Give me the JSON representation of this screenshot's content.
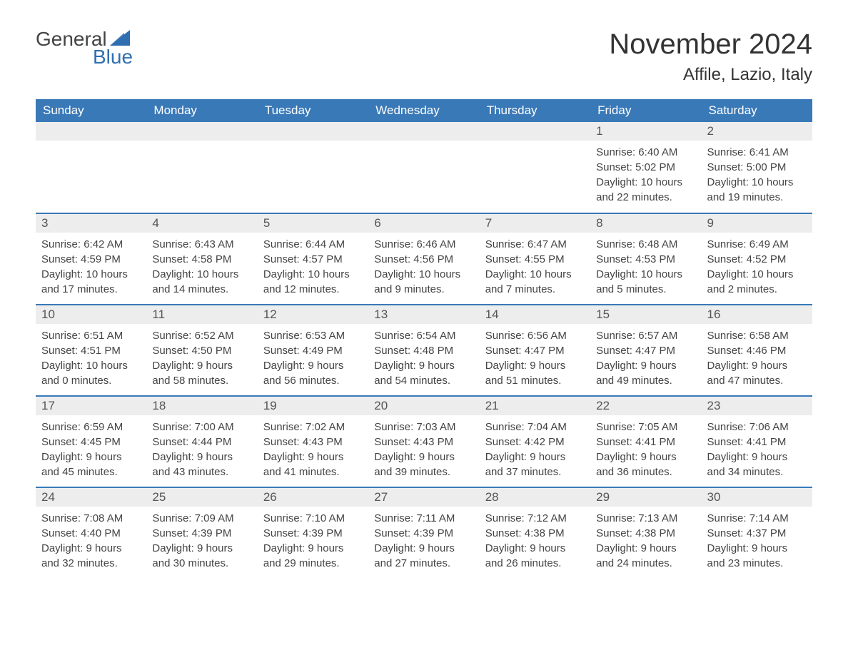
{
  "logo": {
    "word1": "General",
    "word2": "Blue",
    "sail_color": "#2f6fb0",
    "text_gray": "#444444"
  },
  "title": "November 2024",
  "location": "Affile, Lazio, Italy",
  "colors": {
    "header_bg": "#3a79b7",
    "header_text": "#ffffff",
    "row_divider": "#3a79b7",
    "daynum_bg": "#ededed",
    "daynum_text": "#555555",
    "body_text": "#444444",
    "background": "#ffffff"
  },
  "typography": {
    "title_fontsize": 40,
    "location_fontsize": 24,
    "header_fontsize": 17,
    "cell_fontsize": 15
  },
  "dayLabels": [
    "Sunday",
    "Monday",
    "Tuesday",
    "Wednesday",
    "Thursday",
    "Friday",
    "Saturday"
  ],
  "weeks": [
    [
      null,
      null,
      null,
      null,
      null,
      {
        "n": "1",
        "sunrise": "6:40 AM",
        "sunset": "5:02 PM",
        "dl1": "Daylight: 10 hours",
        "dl2": "and 22 minutes."
      },
      {
        "n": "2",
        "sunrise": "6:41 AM",
        "sunset": "5:00 PM",
        "dl1": "Daylight: 10 hours",
        "dl2": "and 19 minutes."
      }
    ],
    [
      {
        "n": "3",
        "sunrise": "6:42 AM",
        "sunset": "4:59 PM",
        "dl1": "Daylight: 10 hours",
        "dl2": "and 17 minutes."
      },
      {
        "n": "4",
        "sunrise": "6:43 AM",
        "sunset": "4:58 PM",
        "dl1": "Daylight: 10 hours",
        "dl2": "and 14 minutes."
      },
      {
        "n": "5",
        "sunrise": "6:44 AM",
        "sunset": "4:57 PM",
        "dl1": "Daylight: 10 hours",
        "dl2": "and 12 minutes."
      },
      {
        "n": "6",
        "sunrise": "6:46 AM",
        "sunset": "4:56 PM",
        "dl1": "Daylight: 10 hours",
        "dl2": "and 9 minutes."
      },
      {
        "n": "7",
        "sunrise": "6:47 AM",
        "sunset": "4:55 PM",
        "dl1": "Daylight: 10 hours",
        "dl2": "and 7 minutes."
      },
      {
        "n": "8",
        "sunrise": "6:48 AM",
        "sunset": "4:53 PM",
        "dl1": "Daylight: 10 hours",
        "dl2": "and 5 minutes."
      },
      {
        "n": "9",
        "sunrise": "6:49 AM",
        "sunset": "4:52 PM",
        "dl1": "Daylight: 10 hours",
        "dl2": "and 2 minutes."
      }
    ],
    [
      {
        "n": "10",
        "sunrise": "6:51 AM",
        "sunset": "4:51 PM",
        "dl1": "Daylight: 10 hours",
        "dl2": "and 0 minutes."
      },
      {
        "n": "11",
        "sunrise": "6:52 AM",
        "sunset": "4:50 PM",
        "dl1": "Daylight: 9 hours",
        "dl2": "and 58 minutes."
      },
      {
        "n": "12",
        "sunrise": "6:53 AM",
        "sunset": "4:49 PM",
        "dl1": "Daylight: 9 hours",
        "dl2": "and 56 minutes."
      },
      {
        "n": "13",
        "sunrise": "6:54 AM",
        "sunset": "4:48 PM",
        "dl1": "Daylight: 9 hours",
        "dl2": "and 54 minutes."
      },
      {
        "n": "14",
        "sunrise": "6:56 AM",
        "sunset": "4:47 PM",
        "dl1": "Daylight: 9 hours",
        "dl2": "and 51 minutes."
      },
      {
        "n": "15",
        "sunrise": "6:57 AM",
        "sunset": "4:47 PM",
        "dl1": "Daylight: 9 hours",
        "dl2": "and 49 minutes."
      },
      {
        "n": "16",
        "sunrise": "6:58 AM",
        "sunset": "4:46 PM",
        "dl1": "Daylight: 9 hours",
        "dl2": "and 47 minutes."
      }
    ],
    [
      {
        "n": "17",
        "sunrise": "6:59 AM",
        "sunset": "4:45 PM",
        "dl1": "Daylight: 9 hours",
        "dl2": "and 45 minutes."
      },
      {
        "n": "18",
        "sunrise": "7:00 AM",
        "sunset": "4:44 PM",
        "dl1": "Daylight: 9 hours",
        "dl2": "and 43 minutes."
      },
      {
        "n": "19",
        "sunrise": "7:02 AM",
        "sunset": "4:43 PM",
        "dl1": "Daylight: 9 hours",
        "dl2": "and 41 minutes."
      },
      {
        "n": "20",
        "sunrise": "7:03 AM",
        "sunset": "4:43 PM",
        "dl1": "Daylight: 9 hours",
        "dl2": "and 39 minutes."
      },
      {
        "n": "21",
        "sunrise": "7:04 AM",
        "sunset": "4:42 PM",
        "dl1": "Daylight: 9 hours",
        "dl2": "and 37 minutes."
      },
      {
        "n": "22",
        "sunrise": "7:05 AM",
        "sunset": "4:41 PM",
        "dl1": "Daylight: 9 hours",
        "dl2": "and 36 minutes."
      },
      {
        "n": "23",
        "sunrise": "7:06 AM",
        "sunset": "4:41 PM",
        "dl1": "Daylight: 9 hours",
        "dl2": "and 34 minutes."
      }
    ],
    [
      {
        "n": "24",
        "sunrise": "7:08 AM",
        "sunset": "4:40 PM",
        "dl1": "Daylight: 9 hours",
        "dl2": "and 32 minutes."
      },
      {
        "n": "25",
        "sunrise": "7:09 AM",
        "sunset": "4:39 PM",
        "dl1": "Daylight: 9 hours",
        "dl2": "and 30 minutes."
      },
      {
        "n": "26",
        "sunrise": "7:10 AM",
        "sunset": "4:39 PM",
        "dl1": "Daylight: 9 hours",
        "dl2": "and 29 minutes."
      },
      {
        "n": "27",
        "sunrise": "7:11 AM",
        "sunset": "4:39 PM",
        "dl1": "Daylight: 9 hours",
        "dl2": "and 27 minutes."
      },
      {
        "n": "28",
        "sunrise": "7:12 AM",
        "sunset": "4:38 PM",
        "dl1": "Daylight: 9 hours",
        "dl2": "and 26 minutes."
      },
      {
        "n": "29",
        "sunrise": "7:13 AM",
        "sunset": "4:38 PM",
        "dl1": "Daylight: 9 hours",
        "dl2": "and 24 minutes."
      },
      {
        "n": "30",
        "sunrise": "7:14 AM",
        "sunset": "4:37 PM",
        "dl1": "Daylight: 9 hours",
        "dl2": "and 23 minutes."
      }
    ]
  ],
  "labels": {
    "sunrise_prefix": "Sunrise: ",
    "sunset_prefix": "Sunset: "
  }
}
